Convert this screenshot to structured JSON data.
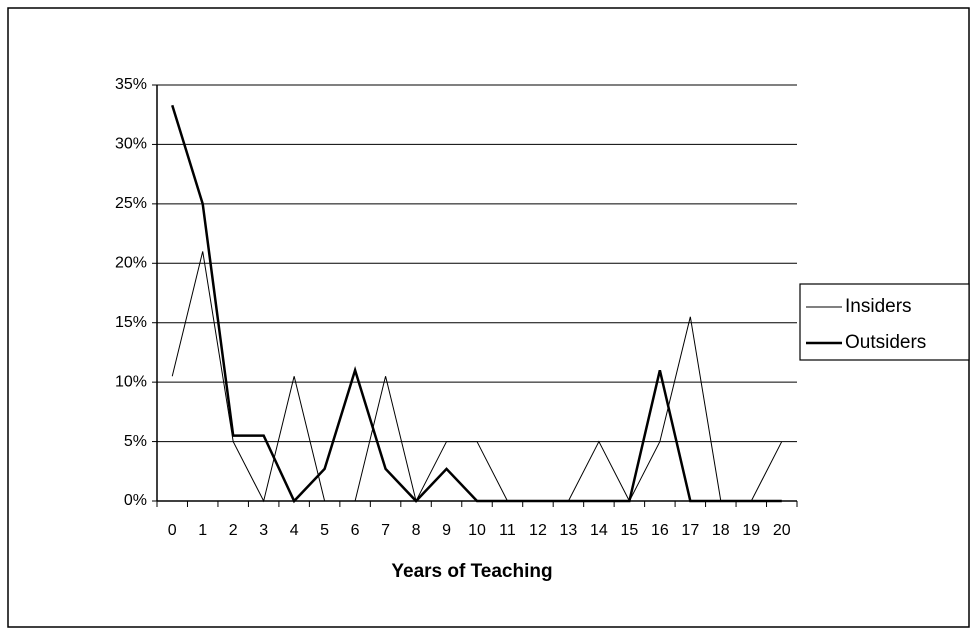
{
  "chart_data": {
    "type": "line",
    "x_label": "Years of Teaching",
    "categories": [
      "0",
      "1",
      "2",
      "3",
      "4",
      "5",
      "6",
      "7",
      "8",
      "9",
      "10",
      "11",
      "12",
      "13",
      "14",
      "15",
      "16",
      "17",
      "18",
      "19",
      "20"
    ],
    "series": [
      {
        "name": "Insiders",
        "color": "#000000",
        "values": [
          10.5,
          21,
          5,
          0,
          10.5,
          0,
          0,
          10.5,
          0,
          5,
          5,
          0,
          0,
          0,
          5,
          0,
          5,
          15.5,
          0,
          0,
          5
        ]
      },
      {
        "name": "Outsiders",
        "color": "#000000",
        "values": [
          33.3,
          25,
          5.5,
          5.5,
          0,
          2.7,
          11,
          2.7,
          0,
          2.7,
          0,
          0,
          0,
          0,
          0,
          0,
          11,
          0,
          0,
          0,
          0
        ]
      }
    ],
    "ylim": [
      0,
      35
    ],
    "yticks": [
      {
        "value": 0,
        "label": "0%"
      },
      {
        "value": 5,
        "label": "5%"
      },
      {
        "value": 10,
        "label": "10%"
      },
      {
        "value": 15,
        "label": "15%"
      },
      {
        "value": 20,
        "label": "20%"
      },
      {
        "value": 25,
        "label": "25%"
      },
      {
        "value": 30,
        "label": "30%"
      },
      {
        "value": 35,
        "label": "35%"
      }
    ],
    "grid": true,
    "legend": "right"
  }
}
